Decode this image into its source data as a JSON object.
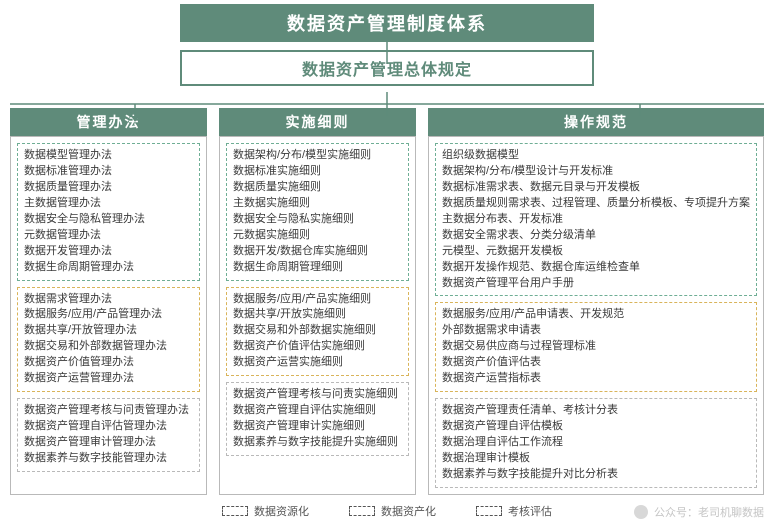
{
  "colors": {
    "brand": "#5f8b7a",
    "text_on_brand": "#ffffff",
    "body_text": "#3a3a3a",
    "col_border": "#b9b9b9",
    "group_colors": {
      "a": "#6fae95",
      "b": "#d9b45a",
      "c": "#b9b9b9"
    },
    "background": "#ffffff"
  },
  "title": "数据资产管理制度体系",
  "subtitle": "数据资产管理总体规定",
  "legend": {
    "a": "数据资源化",
    "b": "数据资产化",
    "c": "考核评估"
  },
  "columns": [
    {
      "header": "管理办法",
      "groups": [
        {
          "cat": "a",
          "items": [
            "数据模型管理办法",
            "数据标准管理办法",
            "数据质量管理办法",
            "主数据管理办法",
            "数据安全与隐私管理办法",
            "元数据管理办法",
            "数据开发管理办法",
            "数据生命周期管理办法"
          ]
        },
        {
          "cat": "b",
          "items": [
            "数据需求管理办法",
            "数据服务/应用/产品管理办法",
            "数据共享/开放管理办法",
            "数据交易和外部数据管理办法",
            "数据资产价值管理办法",
            "数据资产运营管理办法"
          ]
        },
        {
          "cat": "c",
          "items": [
            "数据资产管理考核与问责管理办法",
            "数据资产管理自评估管理办法",
            "数据资产管理审计管理办法",
            "数据素养与数字技能管理办法"
          ]
        }
      ]
    },
    {
      "header": "实施细则",
      "groups": [
        {
          "cat": "a",
          "items": [
            "数据架构/分布/模型实施细则",
            "数据标准实施细则",
            "数据质量实施细则",
            "主数据实施细则",
            "数据安全与隐私实施细则",
            "元数据实施细则",
            "数据开发/数据仓库实施细则",
            "数据生命周期管理细则"
          ]
        },
        {
          "cat": "b",
          "items": [
            "数据服务/应用/产品实施细则",
            "数据共享/开放实施细则",
            "数据交易和外部数据实施细则",
            "数据资产价值评估实施细则",
            "数据资产运营实施细则"
          ]
        },
        {
          "cat": "c",
          "items": [
            "数据资产管理考核与问责实施细则",
            "数据资产管理自评估实施细则",
            "数据资产管理审计实施细则",
            "数据素养与数字技能提升实施细则"
          ]
        }
      ]
    },
    {
      "header": "操作规范",
      "groups": [
        {
          "cat": "a",
          "items": [
            "组织级数据模型",
            "数据架构/分布/模型设计与开发标准",
            "数据标准需求表、数据元目录与开发模板",
            "数据质量规则需求表、过程管理、质量分析模板、专项提升方案",
            "主数据分布表、开发标准",
            "数据安全需求表、分类分级清单",
            "元模型、元数据开发模板",
            "数据开发操作规范、数据仓库运维检查单",
            "数据资产管理平台用户手册"
          ]
        },
        {
          "cat": "b",
          "items": [
            "数据服务/应用/产品申请表、开发规范",
            "外部数据需求申请表",
            "数据交易供应商与过程管理标准",
            "数据资产价值评估表",
            "数据资产运营指标表"
          ]
        },
        {
          "cat": "c",
          "items": [
            "数据资产管理责任清单、考核计分表",
            "数据资产管理自评估模板",
            "数据治理自评估工作流程",
            "数据治理审计模板",
            "数据素养与数字技能提升对比分析表"
          ]
        }
      ]
    }
  ],
  "watermark": "公众号：老司机聊数据"
}
